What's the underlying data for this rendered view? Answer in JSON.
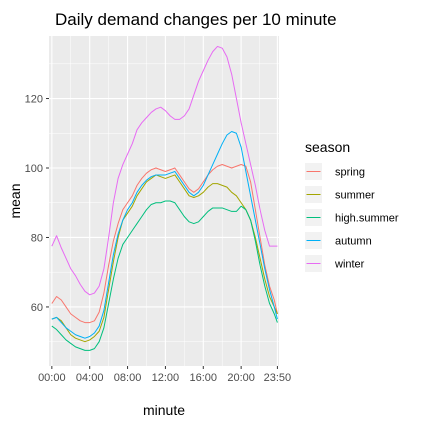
{
  "chart_data": {
    "type": "line",
    "title": "Daily demand changes per 10 minute",
    "xlabel": "minute",
    "ylabel": "mean",
    "xlim": [
      -0.3,
      24.0
    ],
    "ylim": [
      43,
      138
    ],
    "x_ticks": [
      {
        "value": 0,
        "label": "00:00"
      },
      {
        "value": 4,
        "label": "04:00"
      },
      {
        "value": 8,
        "label": "08:00"
      },
      {
        "value": 12,
        "label": "12:00"
      },
      {
        "value": 16,
        "label": "16:00"
      },
      {
        "value": 20,
        "label": "20:00"
      },
      {
        "value": 23.833,
        "label": "23:50"
      }
    ],
    "y_ticks": [
      60,
      80,
      100,
      120
    ],
    "grid": true,
    "legend": {
      "title": "season",
      "position": "right"
    },
    "series": [
      {
        "name": "spring",
        "color": "#F8766D",
        "x": [
          0,
          0.5,
          1,
          1.5,
          2,
          2.5,
          3,
          3.5,
          4,
          4.5,
          5,
          5.5,
          6,
          6.5,
          7,
          7.5,
          8,
          8.5,
          9,
          9.5,
          10,
          10.5,
          11,
          11.5,
          12,
          12.5,
          13,
          13.5,
          14,
          14.5,
          15,
          15.5,
          16,
          16.5,
          17,
          17.5,
          18,
          18.5,
          19,
          19.5,
          20,
          20.5,
          21,
          21.5,
          22,
          22.5,
          23,
          23.5,
          23.833
        ],
        "values": [
          61,
          63,
          62,
          60,
          58,
          57,
          56,
          55.5,
          55.5,
          56,
          58.5,
          64,
          72,
          79,
          84,
          88,
          90,
          92,
          95,
          97,
          98.5,
          99.5,
          100,
          99.5,
          99,
          99.5,
          100,
          98,
          96,
          94,
          93,
          94,
          96,
          98,
          99.5,
          100.5,
          101,
          100.5,
          100,
          100.5,
          101,
          100.5,
          96,
          88,
          80,
          72,
          66,
          62,
          58
        ]
      },
      {
        "name": "summer",
        "color": "#A3A500",
        "x": [
          0,
          0.5,
          1,
          1.5,
          2,
          2.5,
          3,
          3.5,
          4,
          4.5,
          5,
          5.5,
          6,
          6.5,
          7,
          7.5,
          8,
          8.5,
          9,
          9.5,
          10,
          10.5,
          11,
          11.5,
          12,
          12.5,
          13,
          13.5,
          14,
          14.5,
          15,
          15.5,
          16,
          16.5,
          17,
          17.5,
          18,
          18.5,
          19,
          19.5,
          20,
          20.5,
          21,
          21.5,
          22,
          22.5,
          23,
          23.5,
          23.833
        ],
        "values": [
          56.5,
          57,
          56,
          54,
          52,
          51,
          50.5,
          50,
          50.5,
          51.5,
          53,
          57,
          65,
          73,
          80,
          85,
          87,
          89,
          92,
          94,
          96,
          97,
          98,
          97.5,
          97,
          97.5,
          98,
          96,
          94,
          92,
          91.5,
          92,
          93,
          94.5,
          95.5,
          95.5,
          95,
          94.5,
          93,
          92,
          90,
          88,
          85,
          80,
          74,
          68,
          63,
          60,
          58
        ]
      },
      {
        "name": "high.summer",
        "color": "#00BF7D",
        "x": [
          0,
          0.5,
          1,
          1.5,
          2,
          2.5,
          3,
          3.5,
          4,
          4.5,
          5,
          5.5,
          6,
          6.5,
          7,
          7.5,
          8,
          8.5,
          9,
          9.5,
          10,
          10.5,
          11,
          11.5,
          12,
          12.5,
          13,
          13.5,
          14,
          14.5,
          15,
          15.5,
          16,
          16.5,
          17,
          17.5,
          18,
          18.5,
          19,
          19.5,
          20,
          20.5,
          21,
          21.5,
          22,
          22.5,
          23,
          23.5,
          23.833
        ],
        "values": [
          54.5,
          53.5,
          52,
          50.5,
          49.5,
          48.5,
          48,
          47.5,
          47.5,
          48,
          50,
          54,
          61,
          68,
          74,
          78,
          80,
          82,
          84,
          86,
          88,
          89.5,
          90,
          90,
          90.5,
          90.5,
          90,
          88,
          86,
          84.5,
          84,
          84.5,
          86,
          87.5,
          88.5,
          88.5,
          88.5,
          88,
          87.5,
          87.5,
          89,
          88,
          85,
          79,
          72,
          66,
          61,
          58,
          55.5
        ]
      },
      {
        "name": "autumn",
        "color": "#00B0F6",
        "x": [
          0,
          0.5,
          1,
          1.5,
          2,
          2.5,
          3,
          3.5,
          4,
          4.5,
          5,
          5.5,
          6,
          6.5,
          7,
          7.5,
          8,
          8.5,
          9,
          9.5,
          10,
          10.5,
          11,
          11.5,
          12,
          12.5,
          13,
          13.5,
          14,
          14.5,
          15,
          15.5,
          16,
          16.5,
          17,
          17.5,
          18,
          18.5,
          19,
          19.5,
          20,
          20.5,
          21,
          21.5,
          22,
          22.5,
          23,
          23.5,
          23.833
        ],
        "values": [
          56.5,
          57,
          55.5,
          54,
          53,
          52,
          51.5,
          51,
          51.5,
          52.5,
          54.5,
          59,
          67,
          75,
          81,
          85,
          88,
          90,
          93,
          95,
          96.5,
          97.5,
          98,
          98,
          98,
          98.5,
          99,
          97,
          95,
          93,
          92,
          93,
          95,
          98,
          101,
          104,
          107,
          109.5,
          110.5,
          110,
          106,
          99,
          92,
          85,
          78,
          71,
          65,
          60,
          56.5
        ]
      },
      {
        "name": "winter",
        "color": "#E76BF3",
        "x": [
          0,
          0.5,
          1,
          1.5,
          2,
          2.5,
          3,
          3.5,
          4,
          4.5,
          5,
          5.5,
          6,
          6.5,
          7,
          7.5,
          8,
          8.5,
          9,
          9.5,
          10,
          10.5,
          11,
          11.5,
          12,
          12.5,
          13,
          13.5,
          14,
          14.5,
          15,
          15.5,
          16,
          16.5,
          17,
          17.5,
          18,
          18.5,
          19,
          19.5,
          20,
          20.5,
          21,
          21.5,
          22,
          22.5,
          23,
          23.5,
          23.833
        ],
        "values": [
          77.5,
          80.5,
          77,
          74,
          71,
          69,
          66.5,
          64.5,
          63.5,
          64,
          66,
          71,
          80,
          90,
          97,
          101,
          104,
          107,
          111,
          113,
          114.5,
          116,
          117,
          117.5,
          116.5,
          115,
          114,
          114,
          115,
          117,
          121,
          125,
          128,
          131,
          133.5,
          135,
          134.5,
          132,
          127,
          120,
          113,
          107,
          101,
          95,
          88,
          82,
          77.5,
          77.5,
          77.5
        ]
      }
    ]
  }
}
